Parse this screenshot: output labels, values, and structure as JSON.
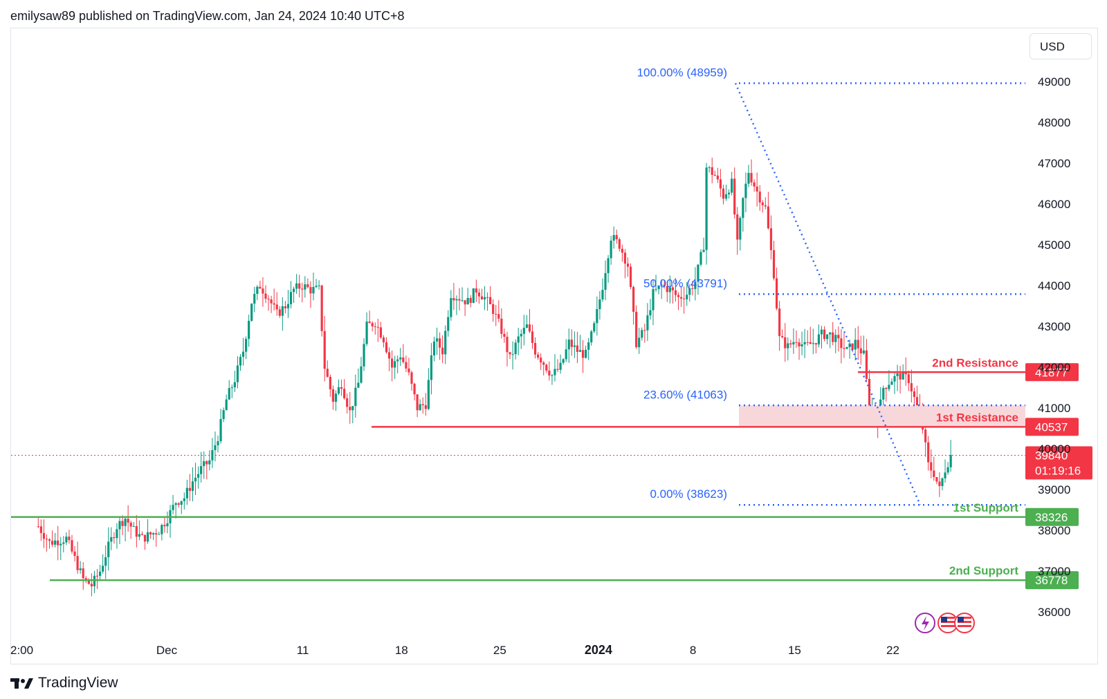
{
  "header": {
    "published_text": "emilysaw89 published on TradingView.com, Jan 24, 2024 10:40 UTC+8"
  },
  "toolbar": {
    "currency_label": "USD"
  },
  "brand": {
    "name": "TradingView"
  },
  "colors": {
    "up": "#089981",
    "down": "#f23645",
    "fib": "#2962ff",
    "resistance": "#f23645",
    "support": "#4caf50",
    "zone": "#f8d7da"
  },
  "chart_data": {
    "type": "candlestick",
    "ylim": [
      35000,
      50000
    ],
    "y_ticks": [
      36000,
      37000,
      38000,
      39000,
      40000,
      41000,
      42000,
      43000,
      44000,
      45000,
      46000,
      47000,
      48000,
      49000
    ],
    "x_ticks": [
      {
        "label": "2:00",
        "x": 0
      },
      {
        "label": "Dec",
        "x": 10
      },
      {
        "label": "11",
        "x": 20
      },
      {
        "label": "18",
        "x": 27
      },
      {
        "label": "25",
        "x": 34
      },
      {
        "label": "2024",
        "x": 41,
        "bold": true
      },
      {
        "label": "8",
        "x": 48
      },
      {
        "label": "15",
        "x": 55
      },
      {
        "label": "22",
        "x": 62
      }
    ],
    "x_range": [
      1,
      67
    ],
    "price_path": [
      [
        1.0,
        38100
      ],
      [
        1.8,
        37700
      ],
      [
        3.0,
        37800
      ],
      [
        3.6,
        37300
      ],
      [
        4.2,
        36800
      ],
      [
        4.8,
        36650
      ],
      [
        5.4,
        37000
      ],
      [
        6.0,
        37600
      ],
      [
        6.6,
        38100
      ],
      [
        7.2,
        38300
      ],
      [
        7.8,
        38000
      ],
      [
        8.4,
        37800
      ],
      [
        9.0,
        37900
      ],
      [
        9.6,
        38000
      ],
      [
        10.2,
        38300
      ],
      [
        10.8,
        38700
      ],
      [
        11.4,
        38800
      ],
      [
        12.0,
        39200
      ],
      [
        12.6,
        39500
      ],
      [
        13.2,
        39700
      ],
      [
        13.8,
        40300
      ],
      [
        14.4,
        41200
      ],
      [
        15.0,
        41700
      ],
      [
        15.6,
        42400
      ],
      [
        16.2,
        43600
      ],
      [
        16.8,
        44000
      ],
      [
        17.4,
        43700
      ],
      [
        18.0,
        43300
      ],
      [
        18.6,
        43500
      ],
      [
        19.2,
        43900
      ],
      [
        19.8,
        44000
      ],
      [
        20.4,
        43900
      ],
      [
        21.0,
        43900
      ],
      [
        21.4,
        42000
      ],
      [
        22.0,
        41200
      ],
      [
        22.6,
        41600
      ],
      [
        23.2,
        40900
      ],
      [
        23.8,
        41600
      ],
      [
        24.4,
        43000
      ],
      [
        25.0,
        43100
      ],
      [
        25.6,
        42700
      ],
      [
        26.2,
        42000
      ],
      [
        26.8,
        42300
      ],
      [
        27.4,
        41800
      ],
      [
        28.0,
        41000
      ],
      [
        28.6,
        41100
      ],
      [
        29.2,
        42700
      ],
      [
        29.8,
        42400
      ],
      [
        30.4,
        43800
      ],
      [
        31.0,
        43700
      ],
      [
        31.6,
        43600
      ],
      [
        32.2,
        43900
      ],
      [
        32.8,
        43700
      ],
      [
        33.4,
        43400
      ],
      [
        34.0,
        42900
      ],
      [
        34.6,
        42200
      ],
      [
        35.2,
        42700
      ],
      [
        35.8,
        43000
      ],
      [
        36.4,
        42400
      ],
      [
        37.0,
        42100
      ],
      [
        37.6,
        41800
      ],
      [
        38.2,
        42000
      ],
      [
        38.8,
        42600
      ],
      [
        39.4,
        42400
      ],
      [
        40.0,
        42300
      ],
      [
        40.6,
        43000
      ],
      [
        41.2,
        44000
      ],
      [
        41.8,
        45200
      ],
      [
        42.4,
        45000
      ],
      [
        43.0,
        44500
      ],
      [
        43.6,
        42600
      ],
      [
        44.2,
        42900
      ],
      [
        44.8,
        43800
      ],
      [
        45.4,
        44000
      ],
      [
        46.0,
        43900
      ],
      [
        46.6,
        43700
      ],
      [
        47.2,
        43800
      ],
      [
        47.8,
        44100
      ],
      [
        48.4,
        45000
      ],
      [
        48.6,
        46900
      ],
      [
        49.2,
        46700
      ],
      [
        49.8,
        46200
      ],
      [
        50.4,
        46500
      ],
      [
        50.8,
        45000
      ],
      [
        51.2,
        46100
      ],
      [
        51.6,
        46800
      ],
      [
        52.2,
        46300
      ],
      [
        52.8,
        45900
      ],
      [
        53.4,
        44300
      ],
      [
        53.8,
        42700
      ],
      [
        54.4,
        42500
      ],
      [
        55.0,
        42700
      ],
      [
        55.6,
        42500
      ],
      [
        56.2,
        42600
      ],
      [
        56.8,
        42800
      ],
      [
        57.4,
        42800
      ],
      [
        58.0,
        42600
      ],
      [
        58.6,
        42400
      ],
      [
        59.2,
        42600
      ],
      [
        59.8,
        42300
      ],
      [
        60.2,
        41000
      ],
      [
        60.8,
        40700
      ],
      [
        61.2,
        41500
      ],
      [
        61.8,
        41700
      ],
      [
        62.4,
        41800
      ],
      [
        63.0,
        41700
      ],
      [
        63.6,
        41000
      ],
      [
        64.0,
        40500
      ],
      [
        64.4,
        39600
      ],
      [
        64.8,
        39400
      ],
      [
        65.2,
        39000
      ],
      [
        65.6,
        39500
      ],
      [
        66.0,
        39840
      ]
    ],
    "fibonacci": {
      "start": [
        61.2,
        48959
      ],
      "end": [
        66.0,
        38623
      ],
      "levels": [
        {
          "label": "100.00% (48959)",
          "value": 48959
        },
        {
          "label": "50.00% (43791)",
          "value": 43791
        },
        {
          "label": "23.60% (41063)",
          "value": 41063
        },
        {
          "label": "0.00% (38623)",
          "value": 38623
        }
      ],
      "trend_from": [
        53.2,
        48959
      ],
      "trend_to": [
        65.3,
        38623
      ]
    },
    "resistance_zone": [
      40537,
      41063
    ],
    "levels": [
      {
        "name": "2nd Resistance",
        "value": 41877,
        "tag": "41877",
        "kind": "resistance"
      },
      {
        "name": "1st Resistance",
        "value": 40537,
        "tag": "40537",
        "kind": "resistance"
      },
      {
        "name": "1st Support",
        "value": 38326,
        "tag": "38326",
        "kind": "support"
      },
      {
        "name": "2nd Support",
        "value": 36778,
        "tag": "36778",
        "kind": "support"
      }
    ],
    "last_price": {
      "value": 39840,
      "tag": "39840",
      "countdown": "01:19:16"
    }
  }
}
